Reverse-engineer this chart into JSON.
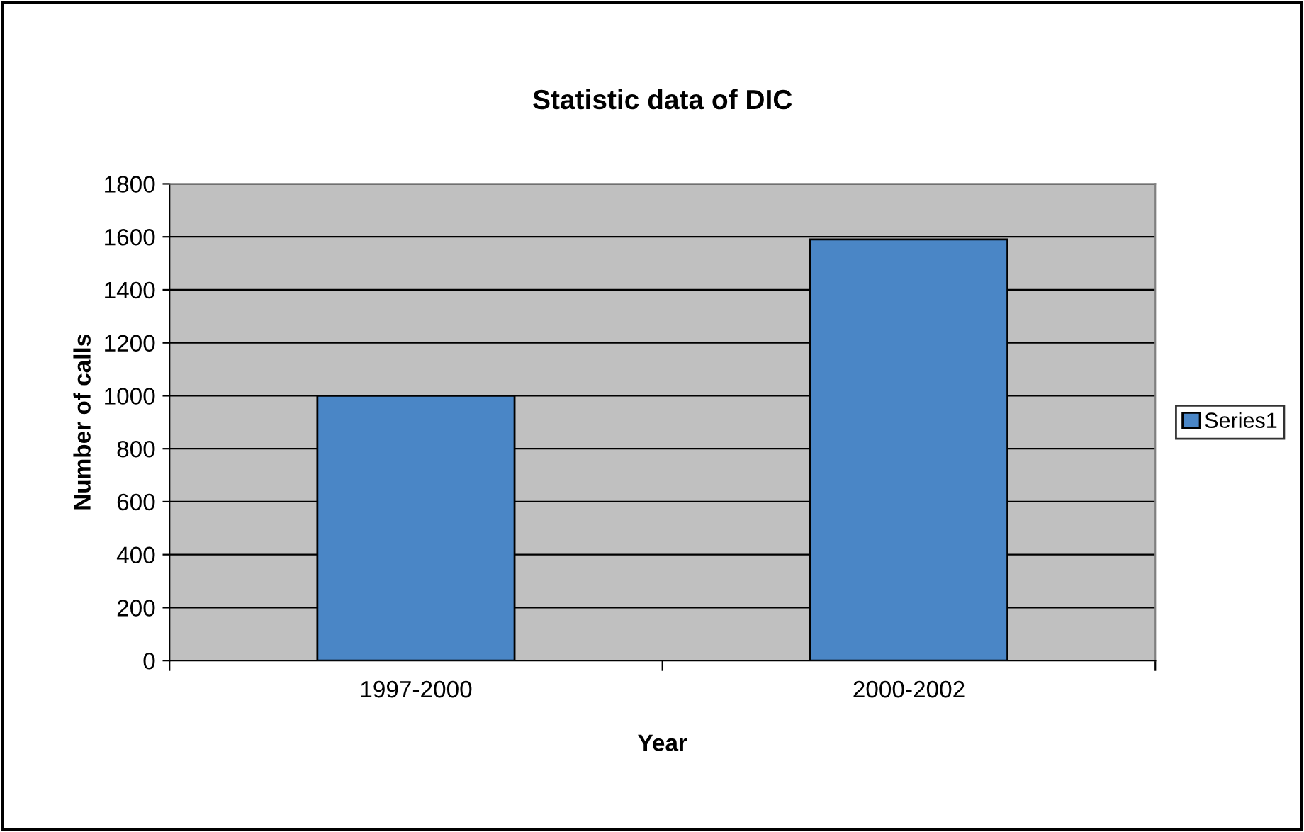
{
  "chart_data": {
    "type": "bar",
    "title": "Statistic data of DIC",
    "xlabel": "Year",
    "ylabel": "Number of calls",
    "categories": [
      "1997-2000",
      "2000-2002"
    ],
    "series": [
      {
        "name": "Series1",
        "color": "#4a86c6",
        "values": [
          1000,
          1590
        ]
      }
    ],
    "ylim": [
      0,
      1800
    ],
    "yticks": [
      0,
      200,
      400,
      600,
      800,
      1000,
      1200,
      1400,
      1600,
      1800
    ],
    "grid": "y",
    "legend": "right"
  }
}
